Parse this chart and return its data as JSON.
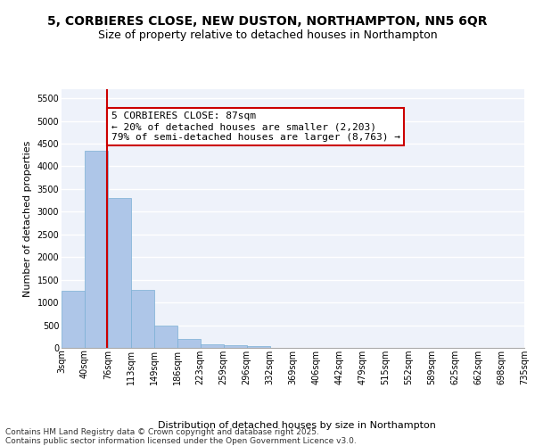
{
  "title1": "5, CORBIERES CLOSE, NEW DUSTON, NORTHAMPTON, NN5 6QR",
  "title2": "Size of property relative to detached houses in Northampton",
  "xlabel": "Distribution of detached houses by size in Northampton",
  "ylabel": "Number of detached properties",
  "bar_color": "#aec6e8",
  "bar_edge_color": "#7aafd4",
  "bar_values": [
    1250,
    4350,
    3300,
    1270,
    500,
    200,
    75,
    50,
    30,
    5,
    0,
    0,
    0,
    0,
    0,
    0,
    0,
    0,
    0,
    0
  ],
  "bin_labels": [
    "3sqm",
    "40sqm",
    "76sqm",
    "113sqm",
    "149sqm",
    "186sqm",
    "223sqm",
    "259sqm",
    "296sqm",
    "332sqm",
    "369sqm",
    "406sqm",
    "442sqm",
    "479sqm",
    "515sqm",
    "552sqm",
    "589sqm",
    "625sqm",
    "662sqm",
    "698sqm",
    "735sqm"
  ],
  "ylim": [
    0,
    5700
  ],
  "yticks": [
    0,
    500,
    1000,
    1500,
    2000,
    2500,
    3000,
    3500,
    4000,
    4500,
    5000,
    5500
  ],
  "property_line_x": 1.45,
  "annotation_text": "5 CORBIERES CLOSE: 87sqm\n← 20% of detached houses are smaller (2,203)\n79% of semi-detached houses are larger (8,763) →",
  "annotation_box_color": "#ffffff",
  "annotation_box_edge": "#cc0000",
  "red_line_color": "#cc0000",
  "background_color": "#eef2fa",
  "grid_color": "#ffffff",
  "footer_text": "Contains HM Land Registry data © Crown copyright and database right 2025.\nContains public sector information licensed under the Open Government Licence v3.0.",
  "title_fontsize": 10,
  "subtitle_fontsize": 9,
  "axis_label_fontsize": 8,
  "tick_fontsize": 7,
  "annotation_fontsize": 8,
  "footer_fontsize": 6.5
}
